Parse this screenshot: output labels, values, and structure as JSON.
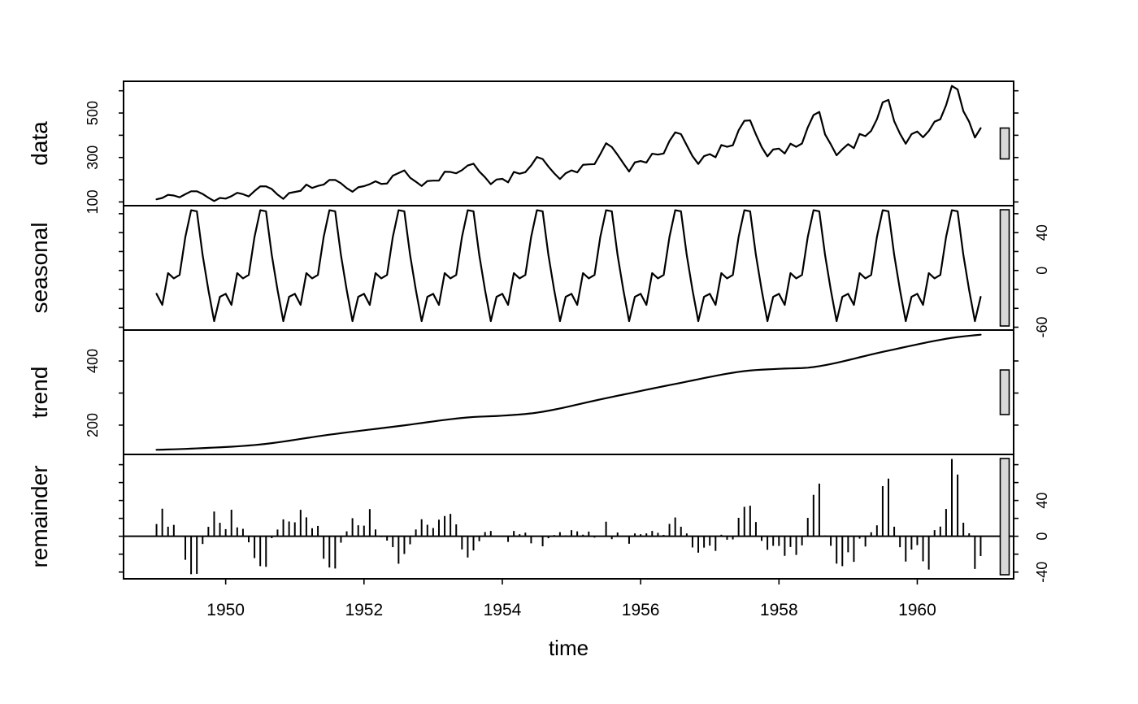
{
  "chart_data": {
    "type": "line",
    "subtype": "stl_decomposition",
    "title": "",
    "xlabel": "time",
    "x_start_year": 1949,
    "frequency": 12,
    "n_points": 144,
    "x_axis": {
      "ticks": [
        1950,
        1952,
        1954,
        1956,
        1958,
        1960
      ],
      "label": "time",
      "minor_tick_years_start": 1949,
      "minor_tick_years_end": 1961
    },
    "observed": [
      112,
      118,
      132,
      129,
      121,
      135,
      148,
      148,
      136,
      119,
      104,
      118,
      115,
      126,
      141,
      135,
      125,
      149,
      170,
      170,
      158,
      133,
      114,
      140,
      145,
      150,
      178,
      163,
      172,
      178,
      199,
      199,
      184,
      162,
      146,
      166,
      171,
      180,
      193,
      181,
      183,
      218,
      230,
      242,
      209,
      191,
      172,
      194,
      196,
      196,
      236,
      235,
      229,
      243,
      264,
      272,
      237,
      211,
      180,
      201,
      204,
      188,
      235,
      227,
      234,
      264,
      302,
      293,
      259,
      229,
      203,
      229,
      242,
      233,
      267,
      269,
      270,
      315,
      364,
      347,
      312,
      274,
      237,
      278,
      284,
      277,
      317,
      313,
      318,
      374,
      413,
      405,
      355,
      306,
      271,
      306,
      315,
      301,
      356,
      348,
      355,
      422,
      465,
      467,
      404,
      347,
      305,
      336,
      340,
      318,
      362,
      348,
      363,
      435,
      491,
      505,
      404,
      359,
      310,
      337,
      360,
      342,
      406,
      396,
      420,
      472,
      548,
      559,
      463,
      407,
      362,
      405,
      417,
      391,
      419,
      461,
      472,
      535,
      622,
      606,
      508,
      461,
      390,
      432
    ],
    "seasonal_monthly": [
      -24.7,
      -36.4,
      -2.8,
      -8.4,
      -4.7,
      35.4,
      63.7,
      62.5,
      16.3,
      -20.7,
      -53.6,
      -27.9
    ],
    "trend_anchors": [
      [
        0,
        123
      ],
      [
        6,
        126.7
      ],
      [
        18,
        139.7
      ],
      [
        30,
        170.2
      ],
      [
        42,
        197.0
      ],
      [
        54,
        224.0
      ],
      [
        60,
        229.5
      ],
      [
        66,
        238.9
      ],
      [
        78,
        284.0
      ],
      [
        90,
        328.3
      ],
      [
        102,
        368.4
      ],
      [
        108,
        375.5
      ],
      [
        114,
        381.0
      ],
      [
        126,
        428.3
      ],
      [
        138,
        472.0
      ],
      [
        143,
        482.0
      ]
    ],
    "panels": [
      {
        "id": "data",
        "label": "data",
        "series": "observed",
        "style": "line",
        "axis_side": "left",
        "tick_step": 100,
        "labeled_ticks": [
          100,
          300,
          500
        ]
      },
      {
        "id": "seasonal",
        "label": "seasonal",
        "series": "seasonal",
        "style": "line",
        "axis_side": "right",
        "tick_step": 20,
        "labeled_ticks": [
          -60,
          0,
          40
        ],
        "ylim": [
          -63,
          68.5
        ]
      },
      {
        "id": "trend",
        "label": "trend",
        "series": "trend",
        "style": "line",
        "axis_side": "left",
        "tick_step": 100,
        "labeled_ticks": [
          200,
          400
        ]
      },
      {
        "id": "remainder",
        "label": "remainder",
        "series": "remainder",
        "style": "bars",
        "axis_side": "right",
        "tick_step": 20,
        "labeled_ticks": [
          -40,
          0,
          40
        ]
      }
    ],
    "colors": {
      "line": "#000000",
      "panel_border": "#000000",
      "background": "#ffffff",
      "range_bar_fill": "#d8d8d8",
      "range_bar_border": "#000000"
    },
    "legend": null,
    "grid": false
  }
}
